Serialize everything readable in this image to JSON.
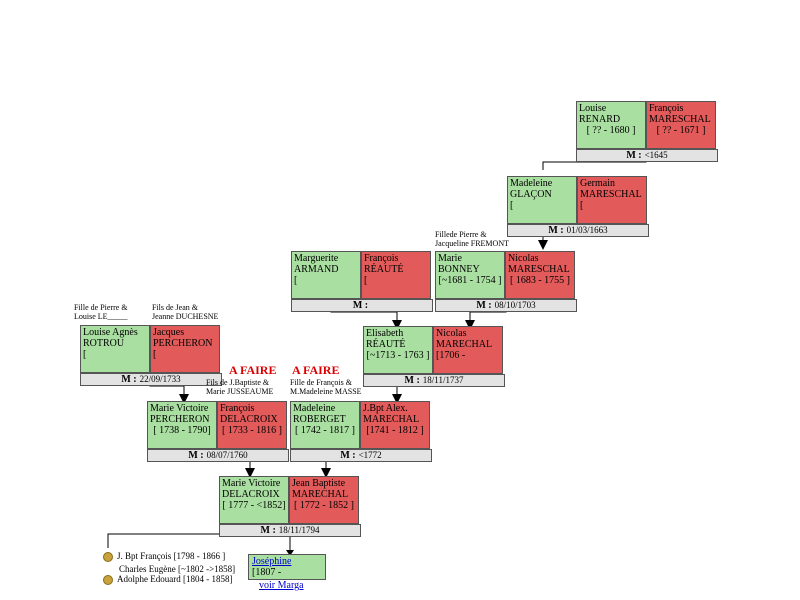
{
  "couples": {
    "c1": {
      "wife": {
        "first": "Louise",
        "last": "RENARD",
        "dates": "[ ?? - 1680 ]"
      },
      "husband": {
        "first": "François",
        "last": "MARESCHAL",
        "dates": "[ ?? - 1671 ]"
      },
      "marriage": "<1645"
    },
    "c2": {
      "wife": {
        "first": "Madeleine",
        "last": "GLAÇON",
        "dates": "["
      },
      "husband": {
        "first": "Germain",
        "last": "MARESCHAL",
        "dates": "["
      },
      "marriage": "01/03/1663"
    },
    "c3": {
      "wife": {
        "first": "Marguerite",
        "last": "ARMAND",
        "dates": "["
      },
      "husband": {
        "first": "François",
        "last": "RÉAUTÉ",
        "dates": "["
      },
      "marriage": ""
    },
    "c4": {
      "wife": {
        "first": "Marie",
        "last": "BONNEY",
        "dates": "[~1681 - 1754 ]"
      },
      "husband": {
        "first": "Nicolas",
        "last": "MARESCHAL",
        "dates": "[ 1683 - 1755 ]"
      },
      "marriage": "08/10/1703"
    },
    "c5": {
      "wife": {
        "first": "Louise Agnès",
        "last": "ROTROU",
        "dates": "["
      },
      "husband": {
        "first": "Jacques",
        "last": "PERCHERON",
        "dates": "["
      },
      "marriage": "22/09/1733"
    },
    "c6": {
      "wife": {
        "first": "Elisabeth",
        "last": "RÉAUTÉ",
        "dates": "[~1713 - 1763 ]"
      },
      "husband": {
        "first": "Nicolas",
        "last": "MARECHAL",
        "dates": "[1706 -"
      },
      "marriage": "18/11/1737"
    },
    "c7": {
      "wife": {
        "first": "Marie Victoire",
        "last": "PERCHERON",
        "dates": "[ 1738 - 1790]"
      },
      "husband": {
        "first": "François",
        "last": "DELACROIX",
        "dates": "[ 1733 - 1816 ]"
      },
      "marriage": "08/07/1760"
    },
    "c8": {
      "wife": {
        "first": "Madeleine",
        "last": "ROBERGET",
        "dates": "[ 1742 - 1817 ]"
      },
      "husband": {
        "first": "J.Bpt Alex.",
        "last": "MARECHAL",
        "dates": "[1741 - 1812 ]"
      },
      "marriage": "<1772"
    },
    "c9": {
      "wife": {
        "first": "Marie Victoire",
        "last": "DELACROIX",
        "dates": "[ 1777 - <1852]"
      },
      "husband": {
        "first": "Jean Baptiste",
        "last": "MARECHAL",
        "dates": "[ 1772 - 1852 ]"
      },
      "marriage": "18/11/1794"
    }
  },
  "marriage_label": "M :",
  "notes": {
    "bonney_parents": "Fillede Pierre &\nJacqueline FREMONT",
    "rotrou_parents": "Fille de Pierre &\nLouise LE_____",
    "percheron_parents": "Fils de Jean &\nJeanne DUCHESNE",
    "delacroix_parents": "Fils de J.Baptiste &\nMarie JUSSEAUME",
    "roberget_parents": "Fille de François &\nM.Madeleine MASSE"
  },
  "a_faire": "A FAIRE",
  "children": [
    {
      "label": "J. Bpt François [1798 - 1866 ]",
      "medal": true
    },
    {
      "label": "Charles Eugène [~1802 ->1858]",
      "medal": false
    },
    {
      "label": "Adolphe Edouard [1804 - 1858]",
      "medal": true
    }
  ],
  "josephine": {
    "name": "Joséphine",
    "dates": "[1807 -"
  },
  "voir_marga": "voir Marga",
  "colors": {
    "wife": "#aadfa2",
    "husband": "#e35a5a",
    "marriage": "#e3e3e3",
    "alert": "#dd0000"
  }
}
